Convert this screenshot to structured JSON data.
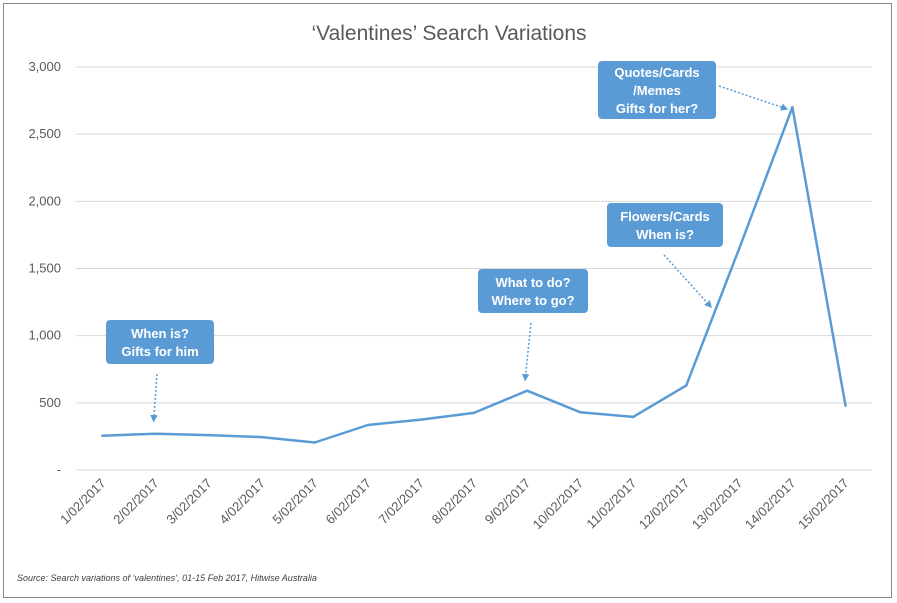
{
  "chart_data": {
    "type": "line",
    "title": "‘Valentines’ Search Variations",
    "categories": [
      "1/02/2017",
      "2/02/2017",
      "3/02/2017",
      "4/02/2017",
      "5/02/2017",
      "6/02/2017",
      "7/02/2017",
      "8/02/2017",
      "9/02/2017",
      "10/02/2017",
      "11/02/2017",
      "12/02/2017",
      "13/02/2017",
      "14/02/2017",
      "15/02/2017"
    ],
    "series": [
      {
        "values": [
          255,
          270,
          260,
          245,
          205,
          335,
          375,
          425,
          590,
          430,
          395,
          630,
          1650,
          2700,
          480
        ]
      }
    ],
    "ylim": [
      0,
      3000
    ],
    "yticks": [
      0,
      500,
      1000,
      1500,
      2000,
      2500,
      3000
    ],
    "ytick_labels": [
      "-",
      "500",
      "1,000",
      "1,500",
      "2,000",
      "2,500",
      "3,000"
    ],
    "grid": true,
    "line_color": "#5b9bd5",
    "callout_color": "#5b9bd5",
    "annotations": [
      {
        "lines": [
          "When is?",
          "Gifts for him"
        ],
        "category_index": 1
      },
      {
        "lines": [
          "What to do?",
          "Where to go?"
        ],
        "category_index": 8
      },
      {
        "lines": [
          "Flowers/Cards",
          "When is?"
        ],
        "category_index": 12
      },
      {
        "lines": [
          "Quotes/Cards",
          "/Memes",
          "Gifts for her?"
        ],
        "category_index": 13
      }
    ],
    "source": "Source: Search variations of ‘valentines’, 01-15 Feb 2017, Hitwise Australia"
  }
}
